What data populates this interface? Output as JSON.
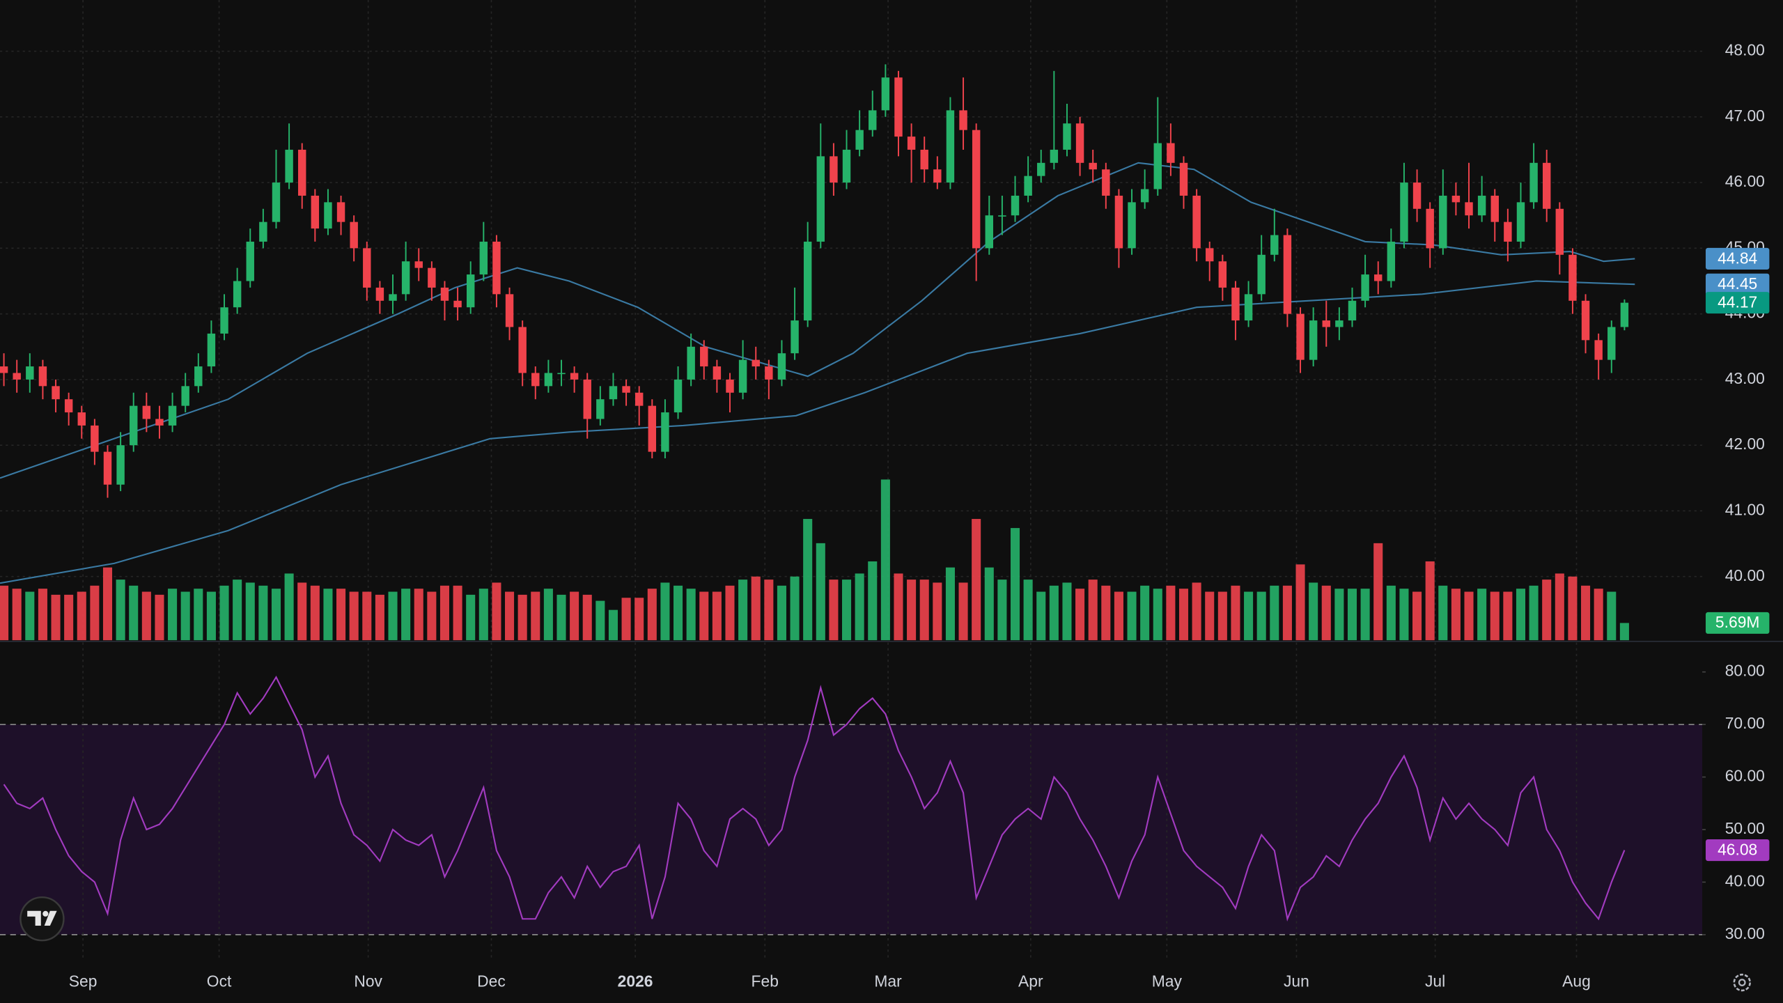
{
  "chart_data": {
    "type": "candlestick",
    "up_color": "#26b36a",
    "down_color": "#f0434c",
    "last_price_color": "#089981",
    "grid": true,
    "xlim": [
      -0.3,
      131
    ],
    "xticks": [
      {
        "value": 6.1,
        "label": "Sep"
      },
      {
        "value": 16.6,
        "label": "Oct"
      },
      {
        "value": 28.1,
        "label": "Nov"
      },
      {
        "value": 37.6,
        "label": "Dec"
      },
      {
        "value": 48.7,
        "label": "2026"
      },
      {
        "value": 58.7,
        "label": "Feb"
      },
      {
        "value": 68.2,
        "label": "Mar"
      },
      {
        "value": 79.2,
        "label": "Apr"
      },
      {
        "value": 89.7,
        "label": "May"
      },
      {
        "value": 99.7,
        "label": "Jun"
      },
      {
        "value": 110.4,
        "label": "Jul"
      },
      {
        "value": 121.3,
        "label": "Aug"
      }
    ],
    "ylim": [
      39.03,
      48.78
    ],
    "yticks": [
      {
        "value": 40,
        "label": "40.00"
      },
      {
        "value": 41,
        "label": "41.00"
      },
      {
        "value": 42,
        "label": "42.00"
      },
      {
        "value": 43,
        "label": "43.00"
      },
      {
        "value": 44,
        "label": "44.00"
      },
      {
        "value": 45,
        "label": "45.00"
      },
      {
        "value": 46,
        "label": "46.00"
      },
      {
        "value": 47,
        "label": "47.00"
      },
      {
        "value": 48,
        "label": "48.00"
      }
    ],
    "candles": [
      [
        43.2,
        43.4,
        42.9,
        43.1
      ],
      [
        43.1,
        43.3,
        42.8,
        43.0
      ],
      [
        43.0,
        43.4,
        42.8,
        43.2
      ],
      [
        43.2,
        43.3,
        42.7,
        42.9
      ],
      [
        42.9,
        43.0,
        42.5,
        42.7
      ],
      [
        42.7,
        42.8,
        42.3,
        42.5
      ],
      [
        42.5,
        42.6,
        42.1,
        42.3
      ],
      [
        42.3,
        42.4,
        41.7,
        41.9
      ],
      [
        41.9,
        42.0,
        41.2,
        41.4
      ],
      [
        41.4,
        42.2,
        41.3,
        42.0
      ],
      [
        42.0,
        42.8,
        41.9,
        42.6
      ],
      [
        42.6,
        42.8,
        42.2,
        42.4
      ],
      [
        42.4,
        42.6,
        42.1,
        42.3
      ],
      [
        42.3,
        42.8,
        42.2,
        42.6
      ],
      [
        42.6,
        43.1,
        42.5,
        42.9
      ],
      [
        42.9,
        43.4,
        42.8,
        43.2
      ],
      [
        43.2,
        43.9,
        43.1,
        43.7
      ],
      [
        43.7,
        44.3,
        43.6,
        44.1
      ],
      [
        44.1,
        44.7,
        44.0,
        44.5
      ],
      [
        44.5,
        45.3,
        44.4,
        45.1
      ],
      [
        45.1,
        45.6,
        45.0,
        45.4
      ],
      [
        45.4,
        46.5,
        45.3,
        46.0
      ],
      [
        46.0,
        46.9,
        45.9,
        46.5
      ],
      [
        46.5,
        46.6,
        45.6,
        45.8
      ],
      [
        45.8,
        45.9,
        45.1,
        45.3
      ],
      [
        45.3,
        45.9,
        45.2,
        45.7
      ],
      [
        45.7,
        45.8,
        45.2,
        45.4
      ],
      [
        45.4,
        45.5,
        44.8,
        45.0
      ],
      [
        45.0,
        45.1,
        44.2,
        44.4
      ],
      [
        44.4,
        44.5,
        44.0,
        44.2
      ],
      [
        44.2,
        44.6,
        44.0,
        44.3
      ],
      [
        44.3,
        45.1,
        44.2,
        44.8
      ],
      [
        44.8,
        45.0,
        44.5,
        44.7
      ],
      [
        44.7,
        44.8,
        44.2,
        44.4
      ],
      [
        44.4,
        44.5,
        43.9,
        44.2
      ],
      [
        44.2,
        44.4,
        43.9,
        44.1
      ],
      [
        44.1,
        44.8,
        44.0,
        44.6
      ],
      [
        44.6,
        45.4,
        44.5,
        45.1
      ],
      [
        45.1,
        45.2,
        44.1,
        44.3
      ],
      [
        44.3,
        44.4,
        43.6,
        43.8
      ],
      [
        43.8,
        43.9,
        42.9,
        43.1
      ],
      [
        43.1,
        43.2,
        42.7,
        42.9
      ],
      [
        42.9,
        43.3,
        42.8,
        43.1
      ],
      [
        43.1,
        43.3,
        42.9,
        43.1
      ],
      [
        43.1,
        43.2,
        42.8,
        43.0
      ],
      [
        43.0,
        43.1,
        42.1,
        42.4
      ],
      [
        42.4,
        42.9,
        42.3,
        42.7
      ],
      [
        42.7,
        43.1,
        42.6,
        42.9
      ],
      [
        42.9,
        43.0,
        42.6,
        42.8
      ],
      [
        42.8,
        42.9,
        42.3,
        42.6
      ],
      [
        42.6,
        42.7,
        41.8,
        41.9
      ],
      [
        41.9,
        42.7,
        41.8,
        42.5
      ],
      [
        42.5,
        43.2,
        42.4,
        43.0
      ],
      [
        43.0,
        43.7,
        42.9,
        43.5
      ],
      [
        43.5,
        43.6,
        43.0,
        43.2
      ],
      [
        43.2,
        43.3,
        42.8,
        43.0
      ],
      [
        43.0,
        43.1,
        42.5,
        42.8
      ],
      [
        42.8,
        43.6,
        42.7,
        43.3
      ],
      [
        43.3,
        43.5,
        43.0,
        43.2
      ],
      [
        43.2,
        43.3,
        42.7,
        43.0
      ],
      [
        43.0,
        43.6,
        42.9,
        43.4
      ],
      [
        43.4,
        44.4,
        43.3,
        43.9
      ],
      [
        43.9,
        45.4,
        43.8,
        45.1
      ],
      [
        45.1,
        46.9,
        45.0,
        46.4
      ],
      [
        46.4,
        46.6,
        45.8,
        46.0
      ],
      [
        46.0,
        46.8,
        45.9,
        46.5
      ],
      [
        46.5,
        47.1,
        46.4,
        46.8
      ],
      [
        46.8,
        47.4,
        46.7,
        47.1
      ],
      [
        47.1,
        47.8,
        47.0,
        47.6
      ],
      [
        47.6,
        47.7,
        46.4,
        46.7
      ],
      [
        46.7,
        46.9,
        46.0,
        46.5
      ],
      [
        46.5,
        46.7,
        46.0,
        46.2
      ],
      [
        46.2,
        46.4,
        45.9,
        46.0
      ],
      [
        46.0,
        47.3,
        45.9,
        47.1
      ],
      [
        47.1,
        47.6,
        46.5,
        46.8
      ],
      [
        46.8,
        46.9,
        44.5,
        45.0
      ],
      [
        45.0,
        45.8,
        44.9,
        45.5
      ],
      [
        45.5,
        45.8,
        45.2,
        45.5
      ],
      [
        45.5,
        46.1,
        45.4,
        45.8
      ],
      [
        45.8,
        46.4,
        45.7,
        46.1
      ],
      [
        46.1,
        46.5,
        46.0,
        46.3
      ],
      [
        46.3,
        47.7,
        46.2,
        46.5
      ],
      [
        46.5,
        47.2,
        46.4,
        46.9
      ],
      [
        46.9,
        47.0,
        46.1,
        46.3
      ],
      [
        46.3,
        46.5,
        46.0,
        46.2
      ],
      [
        46.2,
        46.3,
        45.6,
        45.8
      ],
      [
        45.8,
        45.9,
        44.7,
        45.0
      ],
      [
        45.0,
        45.9,
        44.9,
        45.7
      ],
      [
        45.7,
        46.2,
        45.6,
        45.9
      ],
      [
        45.9,
        47.3,
        45.8,
        46.6
      ],
      [
        46.6,
        46.9,
        46.1,
        46.3
      ],
      [
        46.3,
        46.4,
        45.6,
        45.8
      ],
      [
        45.8,
        45.9,
        44.8,
        45.0
      ],
      [
        45.0,
        45.1,
        44.5,
        44.8
      ],
      [
        44.8,
        44.9,
        44.2,
        44.4
      ],
      [
        44.4,
        44.5,
        43.6,
        43.9
      ],
      [
        43.9,
        44.5,
        43.8,
        44.3
      ],
      [
        44.3,
        45.2,
        44.2,
        44.9
      ],
      [
        44.9,
        45.6,
        44.8,
        45.2
      ],
      [
        45.2,
        45.3,
        43.8,
        44.0
      ],
      [
        44.0,
        44.1,
        43.1,
        43.3
      ],
      [
        43.3,
        44.1,
        43.2,
        43.9
      ],
      [
        43.9,
        44.2,
        43.5,
        43.8
      ],
      [
        43.8,
        44.1,
        43.6,
        43.9
      ],
      [
        43.9,
        44.4,
        43.8,
        44.2
      ],
      [
        44.2,
        44.9,
        44.1,
        44.6
      ],
      [
        44.6,
        44.8,
        44.3,
        44.5
      ],
      [
        44.5,
        45.3,
        44.4,
        45.1
      ],
      [
        45.1,
        46.3,
        45.0,
        46.0
      ],
      [
        46.0,
        46.2,
        45.4,
        45.6
      ],
      [
        45.6,
        45.7,
        44.7,
        45.0
      ],
      [
        45.0,
        46.2,
        44.9,
        45.8
      ],
      [
        45.8,
        46.0,
        45.5,
        45.7
      ],
      [
        45.7,
        46.3,
        45.3,
        45.5
      ],
      [
        45.5,
        46.1,
        45.4,
        45.8
      ],
      [
        45.8,
        45.9,
        45.1,
        45.4
      ],
      [
        45.4,
        45.6,
        44.8,
        45.1
      ],
      [
        45.1,
        46.0,
        45.0,
        45.7
      ],
      [
        45.7,
        46.6,
        45.6,
        46.3
      ],
      [
        46.3,
        46.5,
        45.4,
        45.6
      ],
      [
        45.6,
        45.7,
        44.6,
        44.9
      ],
      [
        44.9,
        45.0,
        44.0,
        44.2
      ],
      [
        44.2,
        44.3,
        43.4,
        43.6
      ],
      [
        43.6,
        43.7,
        43.0,
        43.3
      ],
      [
        43.3,
        43.9,
        43.1,
        43.8
      ],
      [
        43.8,
        44.22,
        43.75,
        44.17
      ]
    ],
    "ma": [
      {
        "color": "#3a7aa3",
        "label_color": "#4a90c8",
        "x": [
          -0.3,
          8.5,
          17.3,
          23.4,
          30.4,
          34.8,
          39.6,
          43.6,
          48.9,
          54.1,
          62,
          65.5,
          70.8,
          76,
          81.3,
          87.5,
          91.8,
          96.2,
          100.6,
          105,
          110.3,
          115.5,
          120.8,
          123.4,
          125.8
        ],
        "values": [
          41.5,
          42.1,
          42.7,
          43.4,
          44.0,
          44.4,
          44.7,
          44.5,
          44.1,
          43.5,
          43.05,
          43.4,
          44.2,
          45.1,
          45.8,
          46.3,
          46.2,
          45.7,
          45.4,
          45.1,
          45.05,
          44.9,
          44.95,
          44.8,
          44.84
        ]
      },
      {
        "color": "#3a7aa3",
        "label_color": "#4a90c8",
        "x": [
          -0.3,
          8.5,
          17.3,
          26,
          37.5,
          43.6,
          52.4,
          61.1,
          66.4,
          74.3,
          83,
          92,
          100.6,
          109.4,
          118.2,
          125.8
        ],
        "values": [
          39.9,
          40.2,
          40.7,
          41.4,
          42.1,
          42.2,
          42.3,
          42.45,
          42.8,
          43.4,
          43.7,
          44.1,
          44.2,
          44.3,
          44.5,
          44.45
        ]
      }
    ],
    "volume": {
      "vlim": [
        0,
        75
      ],
      "last_value_label": "5.69M",
      "values": [
        18,
        17,
        16,
        17,
        15,
        15,
        16,
        18,
        24,
        20,
        18,
        16,
        15,
        17,
        16,
        17,
        16,
        18,
        20,
        19,
        18,
        17,
        22,
        19,
        18,
        17,
        17,
        16,
        16,
        15,
        16,
        17,
        17,
        16,
        18,
        18,
        15,
        17,
        19,
        16,
        15,
        16,
        17,
        15,
        16,
        15,
        13,
        10,
        14,
        14,
        17,
        19,
        18,
        17,
        16,
        16,
        18,
        20,
        21,
        20,
        18,
        21,
        40,
        32,
        20,
        20,
        22,
        26,
        53,
        22,
        20,
        20,
        19,
        24,
        19,
        40,
        24,
        20,
        37,
        20,
        16,
        18,
        19,
        17,
        20,
        18,
        16,
        16,
        18,
        17,
        18,
        17,
        19,
        16,
        16,
        18,
        16,
        16,
        18,
        18,
        25,
        19,
        18,
        17,
        17,
        17,
        32,
        18,
        17,
        16,
        26,
        18,
        17,
        16,
        17,
        16,
        16,
        17,
        18,
        20,
        22,
        21,
        18,
        17,
        16,
        5.69
      ]
    },
    "rsi": {
      "color": "#a23bc0",
      "band_color": "#1e1029",
      "ylim": [
        25,
        85.6
      ],
      "bands": [
        30,
        70
      ],
      "yticks": [
        {
          "value": 30,
          "label": "30.00"
        },
        {
          "value": 40,
          "label": "40.00"
        },
        {
          "value": 50,
          "label": "50.00"
        },
        {
          "value": 60,
          "label": "60.00"
        },
        {
          "value": 70,
          "label": "70.00"
        },
        {
          "value": 80,
          "label": "80.00"
        }
      ],
      "values": [
        58.6,
        55,
        54,
        56,
        50,
        45,
        42,
        40,
        34,
        48,
        56,
        50,
        51,
        54,
        58,
        62,
        66,
        70,
        76,
        72,
        75,
        79,
        74,
        69,
        60,
        64,
        55,
        49,
        47,
        44,
        50,
        48,
        47,
        49,
        41,
        46,
        52,
        58,
        46,
        41,
        33,
        33,
        38,
        41,
        37,
        43,
        39,
        42,
        43,
        47,
        33,
        41,
        55,
        52,
        46,
        43,
        52,
        54,
        52,
        47,
        50,
        60,
        67,
        77,
        68,
        70,
        73,
        75,
        72,
        65,
        60,
        54,
        57,
        63,
        57,
        37,
        43,
        49,
        52,
        54,
        52,
        60,
        57,
        52,
        48,
        43,
        37,
        44,
        49,
        60,
        53,
        46,
        43,
        41,
        39,
        35,
        43,
        49,
        46,
        33,
        39,
        41,
        45,
        43,
        48,
        52,
        55,
        60,
        64,
        58,
        48,
        56,
        52,
        55,
        52,
        50,
        47,
        57,
        60,
        50,
        46,
        40,
        36,
        33,
        40,
        46.08
      ]
    }
  }
}
